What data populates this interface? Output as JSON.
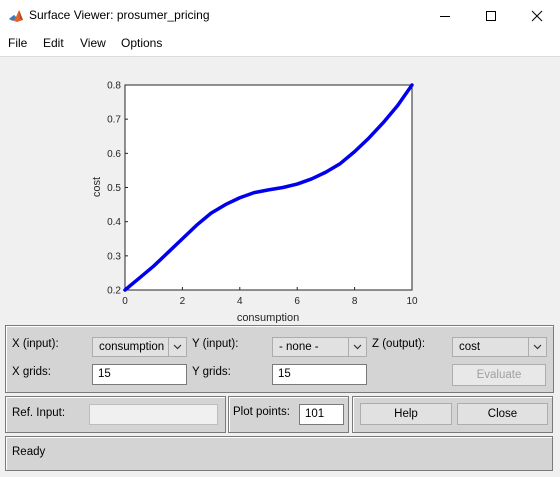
{
  "window": {
    "title": "Surface Viewer: prosumer_pricing"
  },
  "menu": {
    "items": [
      "File",
      "Edit",
      "View",
      "Options"
    ]
  },
  "controls": {
    "x_input_label": "X (input):",
    "x_input_value": "consumption",
    "y_input_label": "Y (input):",
    "y_input_value": "- none -",
    "z_output_label": "Z (output):",
    "z_output_value": "cost",
    "x_grids_label": "X grids:",
    "x_grids_value": "15",
    "y_grids_label": "Y grids:",
    "y_grids_value": "15",
    "evaluate_label": "Evaluate",
    "ref_input_label": "Ref. Input:",
    "ref_input_value": "",
    "plot_points_label": "Plot points:",
    "plot_points_value": "101",
    "help_label": "Help",
    "close_label": "Close"
  },
  "status": {
    "text": "Ready"
  },
  "chart_data": {
    "type": "line",
    "xlabel": "consumption",
    "ylabel": "cost",
    "xlim": [
      0,
      10
    ],
    "ylim": [
      0.2,
      0.8
    ],
    "xticks": [
      "0",
      "2",
      "4",
      "6",
      "8",
      "10"
    ],
    "yticks": [
      "0.2",
      "0.3",
      "0.4",
      "0.5",
      "0.6",
      "0.7",
      "0.8"
    ],
    "grid": false,
    "series": [
      {
        "color": "#0000ee",
        "x": [
          0,
          0.5,
          1,
          1.5,
          2,
          2.5,
          3,
          3.5,
          4,
          4.5,
          5,
          5.5,
          6,
          6.5,
          7,
          7.5,
          8,
          8.5,
          9,
          9.5,
          10
        ],
        "y": [
          0.2,
          0.235,
          0.27,
          0.31,
          0.35,
          0.39,
          0.425,
          0.45,
          0.47,
          0.485,
          0.493,
          0.5,
          0.51,
          0.525,
          0.545,
          0.57,
          0.605,
          0.645,
          0.69,
          0.74,
          0.8
        ]
      }
    ]
  }
}
